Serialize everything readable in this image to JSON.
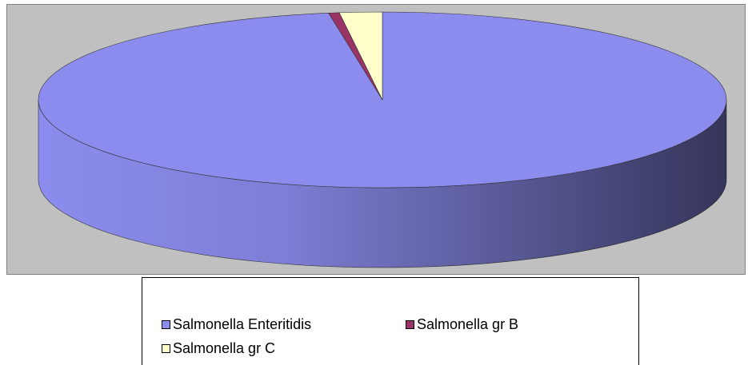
{
  "chart_data": {
    "type": "pie3d",
    "categories": [
      "Salmonella Enteritidis",
      "Salmonella gr B",
      "Salmonella gr C"
    ],
    "values": [
      97.5,
      0.5,
      2
    ],
    "colors": [
      "#8c8cee",
      "#993366",
      "#ffffcc"
    ]
  }
}
